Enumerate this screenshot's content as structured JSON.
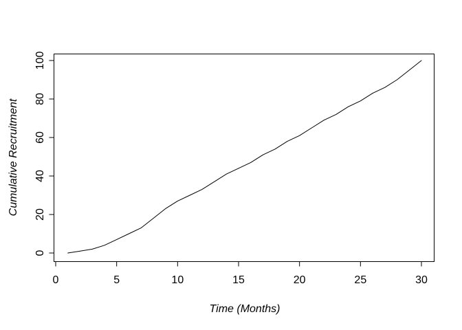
{
  "chart_data": {
    "type": "line",
    "title": "",
    "xlabel": "Time (Months)",
    "ylabel": "Cumulative Recruitment",
    "x": [
      1,
      2,
      3,
      4,
      5,
      6,
      7,
      8,
      9,
      10,
      11,
      12,
      13,
      14,
      15,
      16,
      17,
      18,
      19,
      20,
      21,
      22,
      23,
      24,
      25,
      26,
      27,
      28,
      29,
      30
    ],
    "values": [
      0,
      1,
      2,
      4,
      7,
      10,
      13,
      18,
      23,
      27,
      30,
      33,
      37,
      41,
      44,
      47,
      51,
      54,
      58,
      61,
      65,
      69,
      72,
      76,
      79,
      83,
      86,
      90,
      95,
      100
    ],
    "x_ticks": [
      0,
      5,
      10,
      15,
      20,
      25,
      30
    ],
    "y_ticks": [
      0,
      20,
      40,
      60,
      80,
      100
    ],
    "xlim": [
      0,
      31
    ],
    "ylim": [
      -4,
      104
    ],
    "grid": false,
    "legend": null,
    "line_color": "#000000",
    "background_color": "#ffffff",
    "text_color": "#000000"
  }
}
